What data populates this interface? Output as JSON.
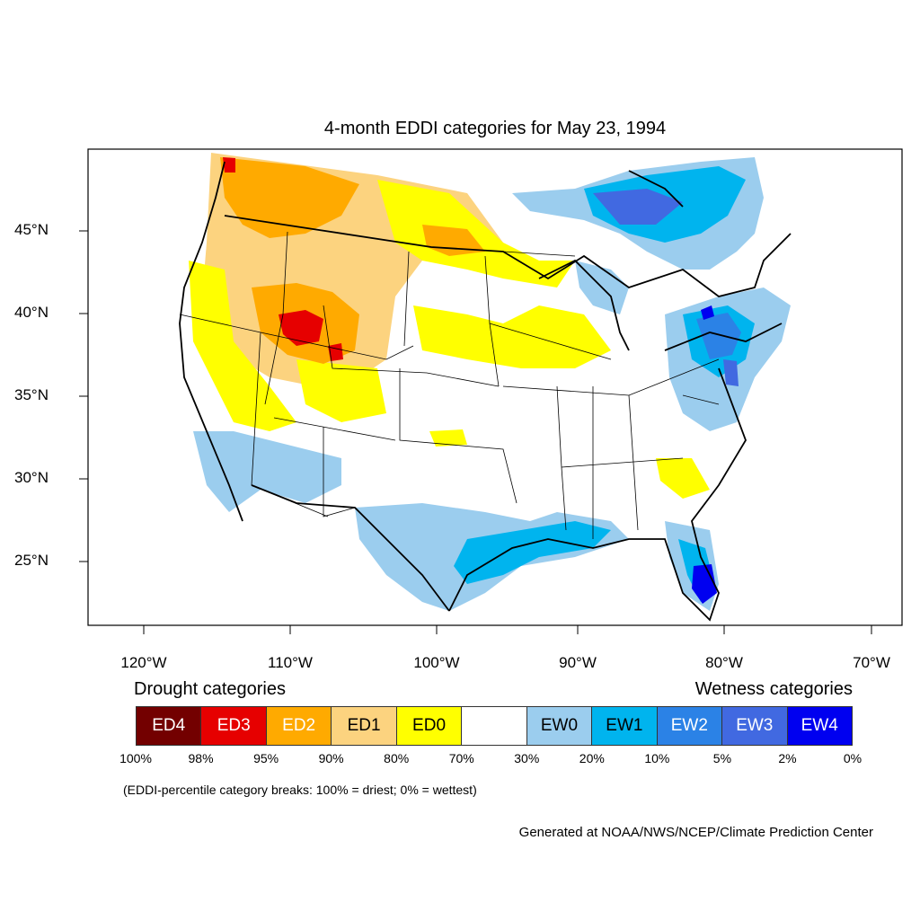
{
  "title": "4-month EDDI categories for May 23, 1994",
  "lat_labels": [
    "45°N",
    "40°N",
    "35°N",
    "30°N",
    "25°N"
  ],
  "lon_labels": [
    "120°W",
    "110°W",
    "100°W",
    "90°W",
    "80°W",
    "70°W"
  ],
  "legend": {
    "drought_heading": "Drought categories",
    "wetness_heading": "Wetness categories",
    "categories": [
      {
        "label": "ED4",
        "color": "#730000",
        "text_color": "#ffffff"
      },
      {
        "label": "ED3",
        "color": "#e60000",
        "text_color": "#ffffff"
      },
      {
        "label": "ED2",
        "color": "#ffaa00",
        "text_color": "#ffffff"
      },
      {
        "label": "ED1",
        "color": "#fcd37f",
        "text_color": "#000000"
      },
      {
        "label": "ED0",
        "color": "#ffff00",
        "text_color": "#000000"
      },
      {
        "label": "",
        "color": "#ffffff",
        "text_color": "#000000"
      },
      {
        "label": "EW0",
        "color": "#9bcdee",
        "text_color": "#000000"
      },
      {
        "label": "EW1",
        "color": "#00b4ee",
        "text_color": "#000000"
      },
      {
        "label": "EW2",
        "color": "#2b82e6",
        "text_color": "#ffffff"
      },
      {
        "label": "EW3",
        "color": "#4169e1",
        "text_color": "#ffffff"
      },
      {
        "label": "EW4",
        "color": "#0000f0",
        "text_color": "#ffffff"
      }
    ],
    "breaks": [
      "100%",
      "98%",
      "95%",
      "90%",
      "80%",
      "70%",
      "30%",
      "20%",
      "10%",
      "5%",
      "2%",
      "0%"
    ]
  },
  "note": "(EDDI-percentile category breaks: 100% = driest; 0% = wettest)",
  "credit": "Generated at NOAA/NWS/NCEP/Climate Prediction Center"
}
